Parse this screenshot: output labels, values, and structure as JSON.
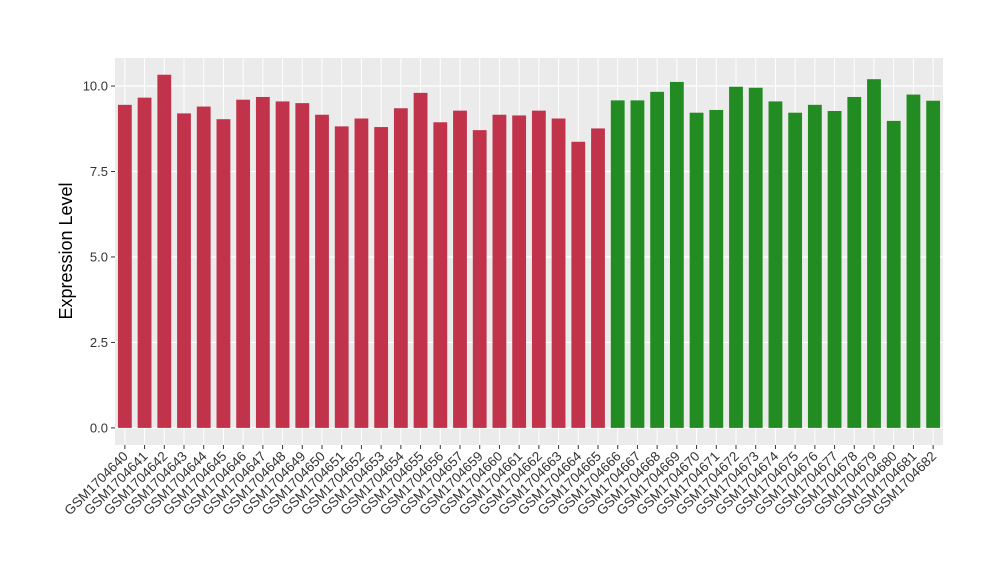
{
  "chart_data": {
    "type": "bar",
    "y_label": "Expression Level",
    "categories": [
      "GSM1704640",
      "GSM1704641",
      "GSM1704642",
      "GSM1704643",
      "GSM1704644",
      "GSM1704645",
      "GSM1704646",
      "GSM1704647",
      "GSM1704648",
      "GSM1704649",
      "GSM1704650",
      "GSM1704651",
      "GSM1704652",
      "GSM1704653",
      "GSM1704654",
      "GSM1704655",
      "GSM1704656",
      "GSM1704657",
      "GSM1704659",
      "GSM1704660",
      "GSM1704661",
      "GSM1704662",
      "GSM1704663",
      "GSM1704664",
      "GSM1704665",
      "GSM1704666",
      "GSM1704667",
      "GSM1704668",
      "GSM1704669",
      "GSM1704670",
      "GSM1704671",
      "GSM1704672",
      "GSM1704673",
      "GSM1704674",
      "GSM1704675",
      "GSM1704676",
      "GSM1704677",
      "GSM1704678",
      "GSM1704679",
      "GSM1704680",
      "GSM1704681",
      "GSM1704682"
    ],
    "values": [
      9.45,
      9.66,
      10.33,
      9.2,
      9.4,
      9.03,
      9.6,
      9.68,
      9.55,
      9.5,
      9.16,
      8.82,
      9.05,
      8.8,
      9.35,
      9.8,
      8.94,
      9.28,
      8.71,
      9.16,
      9.14,
      9.28,
      9.05,
      8.37,
      8.76,
      9.58,
      9.58,
      9.83,
      10.12,
      9.22,
      9.3,
      9.98,
      9.95,
      9.55,
      9.22,
      9.45,
      9.27,
      9.68,
      10.2,
      8.98,
      9.75,
      9.57
    ],
    "colors": [
      "#c0334a",
      "#c0334a",
      "#c0334a",
      "#c0334a",
      "#c0334a",
      "#c0334a",
      "#c0334a",
      "#c0334a",
      "#c0334a",
      "#c0334a",
      "#c0334a",
      "#c0334a",
      "#c0334a",
      "#c0334a",
      "#c0334a",
      "#c0334a",
      "#c0334a",
      "#c0334a",
      "#c0334a",
      "#c0334a",
      "#c0334a",
      "#c0334a",
      "#c0334a",
      "#c0334a",
      "#c0334a",
      "#228b22",
      "#228b22",
      "#228b22",
      "#228b22",
      "#228b22",
      "#228b22",
      "#228b22",
      "#228b22",
      "#228b22",
      "#228b22",
      "#228b22",
      "#228b22",
      "#228b22",
      "#228b22",
      "#228b22",
      "#228b22",
      "#228b22"
    ],
    "ylim": [
      -0.5,
      10.82
    ],
    "yticks": [
      {
        "value": 0,
        "label": "0.0"
      },
      2.5,
      {
        "value": 5,
        "label": "5.0"
      },
      7.5,
      {
        "value": 10,
        "label": "10.0"
      }
    ],
    "grid": true
  }
}
